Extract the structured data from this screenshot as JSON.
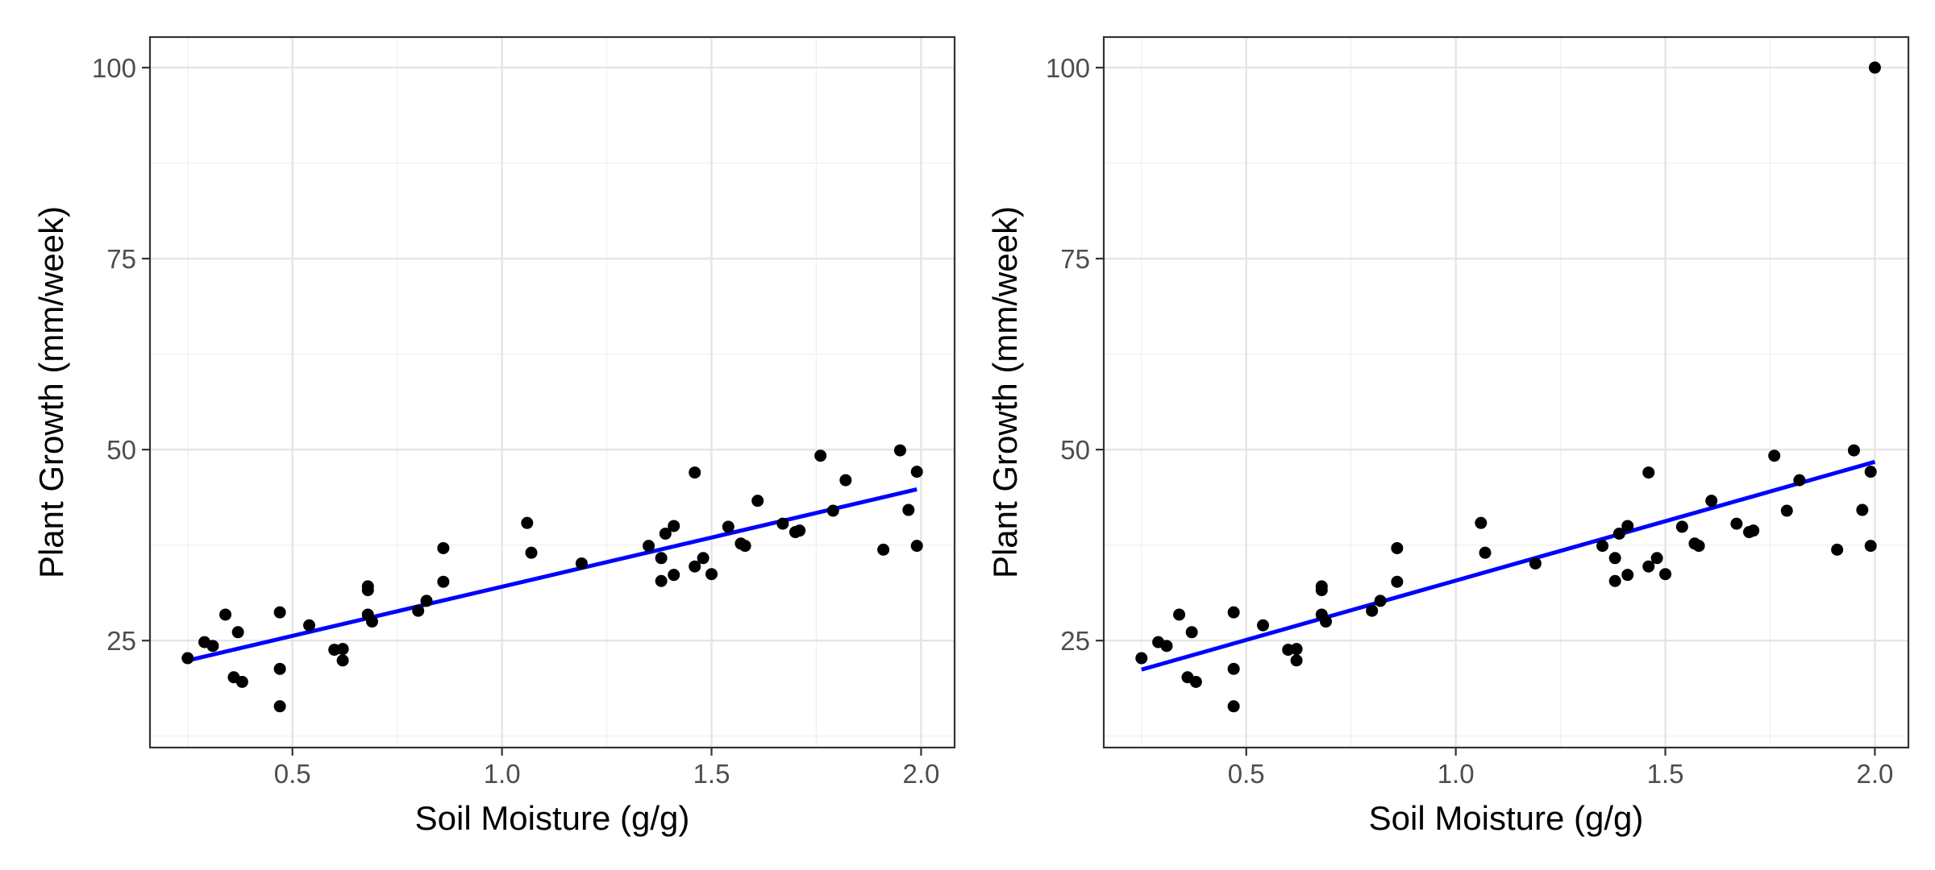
{
  "chart_data": [
    {
      "type": "scatter",
      "title": "",
      "xlabel": "Soil Moisture (g/g)",
      "ylabel": "Plant Growth (mm/week)",
      "xlim": [
        0.16,
        2.08
      ],
      "ylim": [
        11,
        104
      ],
      "x_ticks": [
        {
          "value": 0.5,
          "label": "0.5"
        },
        {
          "value": 1.0,
          "label": "1.0"
        },
        {
          "value": 1.5,
          "label": "1.5"
        },
        {
          "value": 2.0,
          "label": "2.0"
        }
      ],
      "y_ticks": [
        {
          "value": 25,
          "label": "25"
        },
        {
          "value": 50,
          "label": "50"
        },
        {
          "value": 75,
          "label": "75"
        },
        {
          "value": 100,
          "label": "100"
        }
      ],
      "grid": true,
      "point_color": "#000000",
      "fit_color": "#0000ff",
      "points": [
        {
          "x": 0.25,
          "y": 22.7
        },
        {
          "x": 0.29,
          "y": 24.8
        },
        {
          "x": 0.31,
          "y": 24.3
        },
        {
          "x": 0.34,
          "y": 28.4
        },
        {
          "x": 0.36,
          "y": 20.2
        },
        {
          "x": 0.37,
          "y": 26.1
        },
        {
          "x": 0.38,
          "y": 19.6
        },
        {
          "x": 0.47,
          "y": 28.7
        },
        {
          "x": 0.47,
          "y": 21.3
        },
        {
          "x": 0.47,
          "y": 16.4
        },
        {
          "x": 0.54,
          "y": 27.0
        },
        {
          "x": 0.6,
          "y": 23.8
        },
        {
          "x": 0.62,
          "y": 23.9
        },
        {
          "x": 0.62,
          "y": 22.4
        },
        {
          "x": 0.68,
          "y": 32.1
        },
        {
          "x": 0.68,
          "y": 31.6
        },
        {
          "x": 0.68,
          "y": 28.4
        },
        {
          "x": 0.69,
          "y": 27.5
        },
        {
          "x": 0.8,
          "y": 28.9
        },
        {
          "x": 0.82,
          "y": 30.2
        },
        {
          "x": 0.86,
          "y": 37.1
        },
        {
          "x": 0.86,
          "y": 32.7
        },
        {
          "x": 1.06,
          "y": 40.4
        },
        {
          "x": 1.07,
          "y": 36.5
        },
        {
          "x": 1.19,
          "y": 35.1
        },
        {
          "x": 1.35,
          "y": 37.4
        },
        {
          "x": 1.38,
          "y": 35.8
        },
        {
          "x": 1.38,
          "y": 32.8
        },
        {
          "x": 1.39,
          "y": 39.0
        },
        {
          "x": 1.41,
          "y": 40.0
        },
        {
          "x": 1.41,
          "y": 33.6
        },
        {
          "x": 1.46,
          "y": 47.0
        },
        {
          "x": 1.46,
          "y": 34.7
        },
        {
          "x": 1.48,
          "y": 35.8
        },
        {
          "x": 1.5,
          "y": 33.7
        },
        {
          "x": 1.54,
          "y": 39.9
        },
        {
          "x": 1.57,
          "y": 37.7
        },
        {
          "x": 1.58,
          "y": 37.4
        },
        {
          "x": 1.61,
          "y": 43.3
        },
        {
          "x": 1.67,
          "y": 40.3
        },
        {
          "x": 1.7,
          "y": 39.2
        },
        {
          "x": 1.71,
          "y": 39.4
        },
        {
          "x": 1.76,
          "y": 49.2
        },
        {
          "x": 1.79,
          "y": 42.0
        },
        {
          "x": 1.82,
          "y": 46.0
        },
        {
          "x": 1.91,
          "y": 36.9
        },
        {
          "x": 1.95,
          "y": 49.9
        },
        {
          "x": 1.97,
          "y": 42.1
        },
        {
          "x": 1.99,
          "y": 47.1
        },
        {
          "x": 1.99,
          "y": 37.4
        }
      ],
      "fit_line": {
        "x": [
          0.25,
          1.99
        ],
        "y": [
          22.4,
          44.8
        ]
      }
    },
    {
      "type": "scatter",
      "title": "",
      "xlabel": "Soil Moisture (g/g)",
      "ylabel": "Plant Growth (mm/week)",
      "xlim": [
        0.16,
        2.08
      ],
      "ylim": [
        11,
        104
      ],
      "x_ticks": [
        {
          "value": 0.5,
          "label": "0.5"
        },
        {
          "value": 1.0,
          "label": "1.0"
        },
        {
          "value": 1.5,
          "label": "1.5"
        },
        {
          "value": 2.0,
          "label": "2.0"
        }
      ],
      "y_ticks": [
        {
          "value": 25,
          "label": "25"
        },
        {
          "value": 50,
          "label": "50"
        },
        {
          "value": 75,
          "label": "75"
        },
        {
          "value": 100,
          "label": "100"
        }
      ],
      "grid": true,
      "point_color": "#000000",
      "fit_color": "#0000ff",
      "points": [
        {
          "x": 0.25,
          "y": 22.7
        },
        {
          "x": 0.29,
          "y": 24.8
        },
        {
          "x": 0.31,
          "y": 24.3
        },
        {
          "x": 0.34,
          "y": 28.4
        },
        {
          "x": 0.36,
          "y": 20.2
        },
        {
          "x": 0.37,
          "y": 26.1
        },
        {
          "x": 0.38,
          "y": 19.6
        },
        {
          "x": 0.47,
          "y": 28.7
        },
        {
          "x": 0.47,
          "y": 21.3
        },
        {
          "x": 0.47,
          "y": 16.4
        },
        {
          "x": 0.54,
          "y": 27.0
        },
        {
          "x": 0.6,
          "y": 23.8
        },
        {
          "x": 0.62,
          "y": 23.9
        },
        {
          "x": 0.62,
          "y": 22.4
        },
        {
          "x": 0.68,
          "y": 32.1
        },
        {
          "x": 0.68,
          "y": 31.6
        },
        {
          "x": 0.68,
          "y": 28.4
        },
        {
          "x": 0.69,
          "y": 27.5
        },
        {
          "x": 0.8,
          "y": 28.9
        },
        {
          "x": 0.82,
          "y": 30.2
        },
        {
          "x": 0.86,
          "y": 37.1
        },
        {
          "x": 0.86,
          "y": 32.7
        },
        {
          "x": 1.06,
          "y": 40.4
        },
        {
          "x": 1.07,
          "y": 36.5
        },
        {
          "x": 1.19,
          "y": 35.1
        },
        {
          "x": 1.35,
          "y": 37.4
        },
        {
          "x": 1.38,
          "y": 35.8
        },
        {
          "x": 1.38,
          "y": 32.8
        },
        {
          "x": 1.39,
          "y": 39.0
        },
        {
          "x": 1.41,
          "y": 40.0
        },
        {
          "x": 1.41,
          "y": 33.6
        },
        {
          "x": 1.46,
          "y": 47.0
        },
        {
          "x": 1.46,
          "y": 34.7
        },
        {
          "x": 1.48,
          "y": 35.8
        },
        {
          "x": 1.5,
          "y": 33.7
        },
        {
          "x": 1.54,
          "y": 39.9
        },
        {
          "x": 1.57,
          "y": 37.7
        },
        {
          "x": 1.58,
          "y": 37.4
        },
        {
          "x": 1.61,
          "y": 43.3
        },
        {
          "x": 1.67,
          "y": 40.3
        },
        {
          "x": 1.7,
          "y": 39.2
        },
        {
          "x": 1.71,
          "y": 39.4
        },
        {
          "x": 1.76,
          "y": 49.2
        },
        {
          "x": 1.79,
          "y": 42.0
        },
        {
          "x": 1.82,
          "y": 46.0
        },
        {
          "x": 1.91,
          "y": 36.9
        },
        {
          "x": 1.95,
          "y": 49.9
        },
        {
          "x": 1.97,
          "y": 42.1
        },
        {
          "x": 1.99,
          "y": 47.1
        },
        {
          "x": 1.99,
          "y": 37.4
        },
        {
          "x": 2.0,
          "y": 100.0
        }
      ],
      "fit_line": {
        "x": [
          0.25,
          2.0
        ],
        "y": [
          21.2,
          48.4
        ]
      }
    }
  ]
}
